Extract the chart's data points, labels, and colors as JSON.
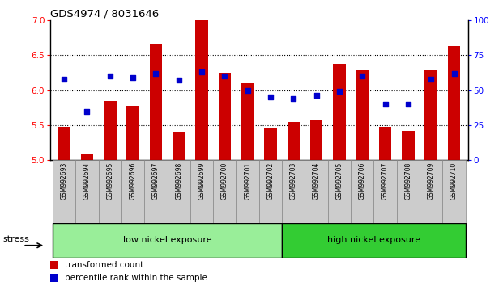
{
  "title": "GDS4974 / 8031646",
  "samples": [
    "GSM992693",
    "GSM992694",
    "GSM992695",
    "GSM992696",
    "GSM992697",
    "GSM992698",
    "GSM992699",
    "GSM992700",
    "GSM992701",
    "GSM992702",
    "GSM992703",
    "GSM992704",
    "GSM992705",
    "GSM992706",
    "GSM992707",
    "GSM992708",
    "GSM992709",
    "GSM992710"
  ],
  "bar_values": [
    5.48,
    5.1,
    5.85,
    5.78,
    6.65,
    5.4,
    7.0,
    6.25,
    6.1,
    5.45,
    5.55,
    5.58,
    6.37,
    6.28,
    5.47,
    5.42,
    6.28,
    6.63
  ],
  "dot_values": [
    58,
    35,
    60,
    59,
    62,
    57,
    63,
    60,
    50,
    45,
    44,
    46,
    49,
    60,
    40,
    40,
    58,
    62
  ],
  "ylim_left": [
    5.0,
    7.0
  ],
  "ylim_right": [
    0,
    100
  ],
  "yticks_left": [
    5.0,
    5.5,
    6.0,
    6.5,
    7.0
  ],
  "yticks_right": [
    0,
    25,
    50,
    75,
    100
  ],
  "bar_color": "#cc0000",
  "dot_color": "#0000cc",
  "group1_label": "low nickel exposure",
  "group2_label": "high nickel exposure",
  "group1_n": 10,
  "group2_n": 8,
  "group1_color": "#99ee99",
  "group2_color": "#33cc33",
  "stress_label": "stress",
  "legend_bar": "transformed count",
  "legend_dot": "percentile rank within the sample",
  "bar_base": 5.0,
  "n_samples": 18,
  "gridlines": [
    5.5,
    6.0,
    6.5
  ],
  "tick_label_bg": "#cccccc",
  "tick_label_border": "#888888"
}
